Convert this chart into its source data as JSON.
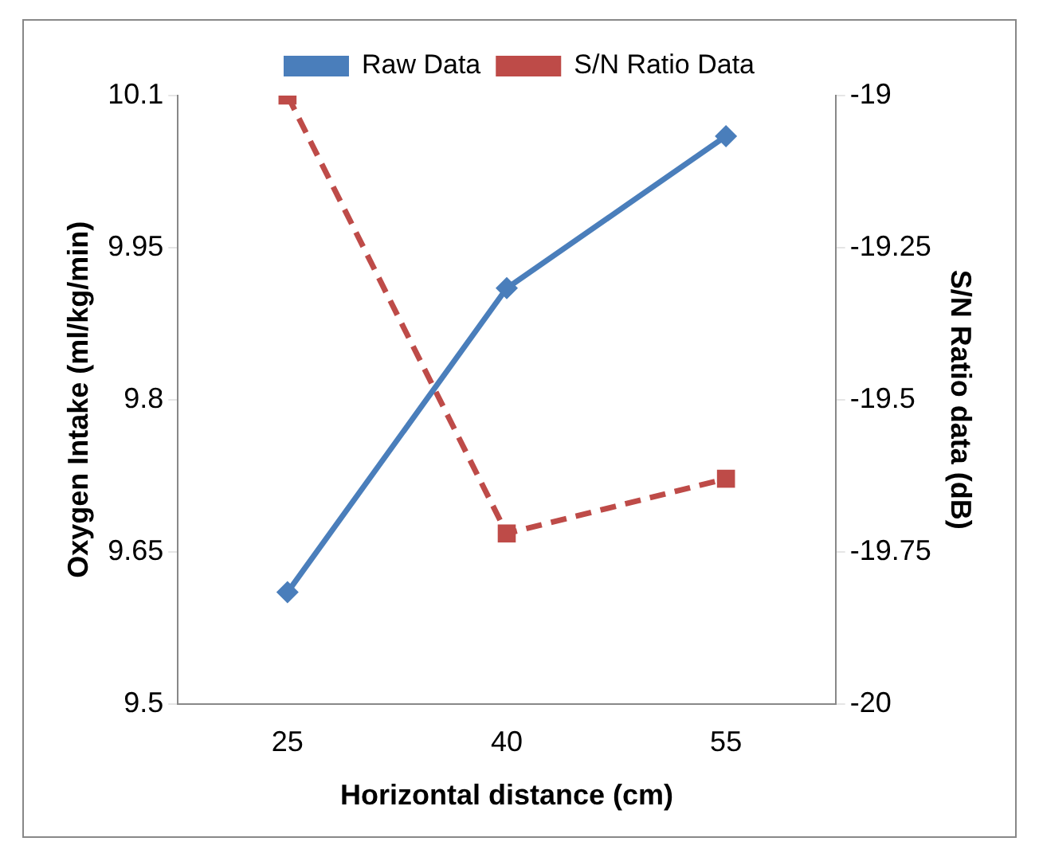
{
  "chart_data": {
    "type": "line",
    "xlabel": "Horizontal distance (cm)",
    "ylabel": "Oxygen Intake (ml/kg/min)",
    "y2label": "S/N Ratio data (dB)",
    "categories": [
      "25",
      "40",
      "55"
    ],
    "series": [
      {
        "name": "Raw Data",
        "color": "#4a7ebb",
        "values": [
          9.61,
          9.91,
          10.06
        ],
        "marker": "diamond",
        "line_style": "solid"
      },
      {
        "name": "S/N Ratio Data",
        "color": "#be4b48",
        "values": [
          -19,
          -19.72,
          -19.63
        ],
        "axis": "y2",
        "marker": "square",
        "line_style": "dashed"
      }
    ],
    "ylim": [
      9.5,
      10.1
    ],
    "yticks": [
      9.5,
      9.65,
      9.8,
      9.95,
      10.1
    ],
    "y2lim": [
      -20,
      -19
    ],
    "y2ticks": [
      -20,
      -19.75,
      -19.5,
      -19.25,
      -19
    ],
    "grid": false,
    "legend": "top"
  }
}
